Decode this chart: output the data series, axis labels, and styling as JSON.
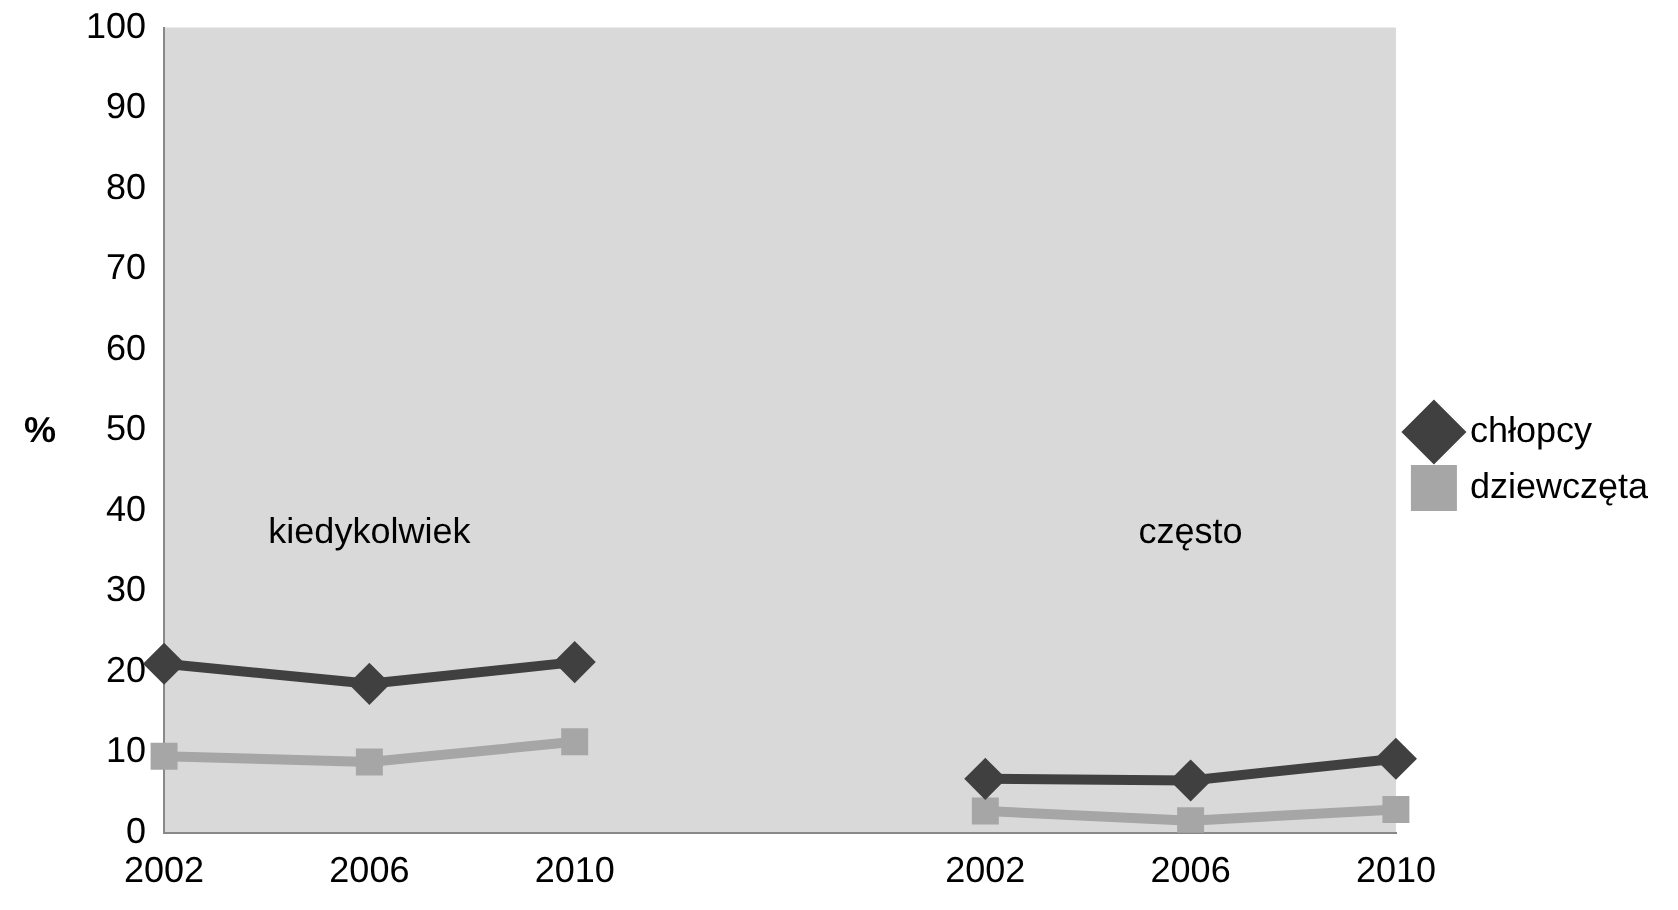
{
  "chart_data": {
    "type": "line",
    "ylabel": "%",
    "categories": [
      "2002",
      "2006",
      "2010",
      null,
      "2002",
      "2006",
      "2010"
    ],
    "series": [
      {
        "name": "chłopcy",
        "color": "#404040",
        "marker": "diamond",
        "values": [
          21,
          18.5,
          21.2,
          null,
          6.7,
          6.5,
          9.2
        ]
      },
      {
        "name": "dziewczęta",
        "color": "#a6a6a6",
        "marker": "square",
        "values": [
          9.5,
          8.8,
          11.3,
          null,
          2.7,
          1.5,
          2.9
        ]
      }
    ],
    "ylim": [
      0,
      100
    ],
    "yticks": [
      0,
      10,
      20,
      30,
      40,
      50,
      60,
      70,
      80,
      90,
      100
    ],
    "grid": false,
    "legend": "right",
    "annotations": [
      "kiedykolwiek",
      "często"
    ]
  }
}
